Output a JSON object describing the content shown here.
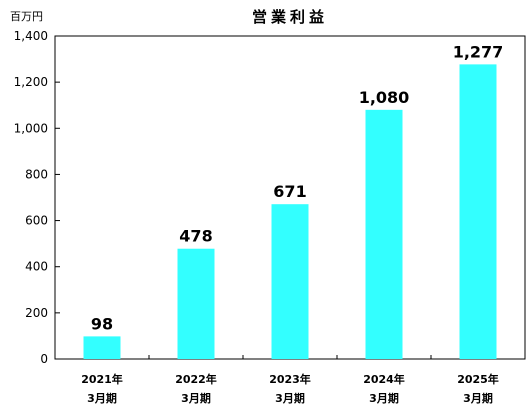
{
  "chart_data": {
    "type": "bar",
    "title": "営業利益",
    "unit_label": "百万円",
    "categories": [
      {
        "year": "2021年",
        "period": "3月期"
      },
      {
        "year": "2022年",
        "period": "3月期"
      },
      {
        "year": "2023年",
        "period": "3月期"
      },
      {
        "year": "2024年",
        "period": "3月期"
      },
      {
        "year": "2025年",
        "period": "3月期"
      }
    ],
    "values": [
      98,
      478,
      671,
      1080,
      1277
    ],
    "value_labels": [
      "98",
      "478",
      "671",
      "1,080",
      "1,277"
    ],
    "y_ticks": [
      0,
      200,
      400,
      600,
      800,
      1000,
      1200,
      1400
    ],
    "y_tick_labels": [
      "0",
      "200",
      "400",
      "600",
      "800",
      "1,000",
      "1,200",
      "1,400"
    ],
    "ylim": [
      0,
      1400
    ],
    "grid": false,
    "colors": {
      "bar": "#33FFFF",
      "axis": "#000000"
    }
  }
}
